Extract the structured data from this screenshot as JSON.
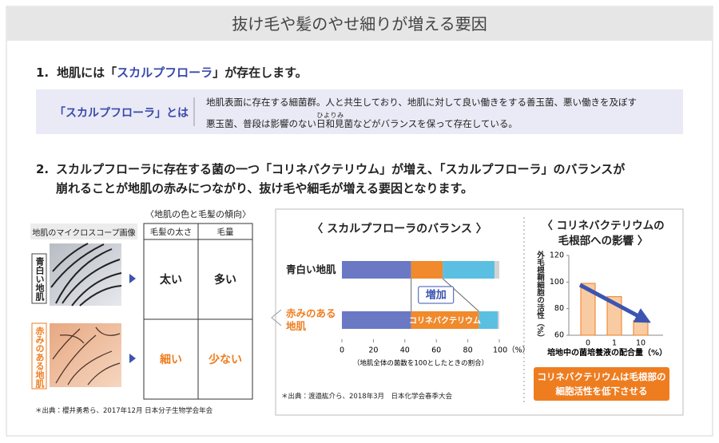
{
  "header": {
    "title": "抜け毛や髪のやせ細りが増える要因"
  },
  "section1": {
    "number": "1.",
    "heading": [
      "地肌には「",
      "スカルプフローラ",
      "」が存在します。"
    ],
    "definition": {
      "term": "「スカルプフローラ」とは",
      "line1": "地肌表面に存在する細菌群。人と共生しており、地肌に対して良い働きをする善玉菌、悪い働きを及ぼす",
      "line2_before": "悪玉菌、普段は影響のない",
      "ruby_base": "日和見",
      "ruby": "ひよりみ",
      "line2_after": "菌などがバランスを保って存在している。"
    }
  },
  "section2": {
    "number": "2.",
    "lines": [
      "スカルプフローラに存在する菌の一つ「コリネバクテリウム」が増え、「スカルプフローラ」のバランスが",
      "崩れることが地肌の赤みにつながり、抜け毛や細毛が増える要因となります。"
    ]
  },
  "skin_table": {
    "caption": "〈地肌の色と毛髪の傾向〉",
    "headers": [
      "地肌のマイクロスコープ画像",
      "毛髪の太さ",
      "毛量"
    ],
    "rows": [
      [
        "青白い地肌",
        "太い",
        "多い"
      ],
      [
        "赤みのある地肌",
        "細い",
        "少ない"
      ]
    ],
    "source": "＊出典：櫻井勇希ら、2017年12月 日本分子生物学会年会"
  },
  "chart_data": [
    {
      "type": "stacked-barh",
      "title": "〈 スカルプフローラのバランス 〉",
      "categories": [
        "青白い地肌",
        "赤みのある地肌"
      ],
      "series": [
        {
          "color": "#6b78c4",
          "values": [
            44,
            44
          ]
        },
        {
          "color": "#f08a2c",
          "values": [
            20,
            43
          ]
        },
        {
          "color": "#5bbfe2",
          "values": [
            33,
            12
          ]
        },
        {
          "color": "#d3d3d3",
          "values": [
            3,
            1
          ]
        }
      ],
      "xlim": [
        0,
        100
      ],
      "xticks": [
        0,
        20,
        40,
        60,
        80,
        {
          "value": 100,
          "label": "100（%）"
        }
      ],
      "xlabel": "（地肌全体の菌数を100としたときの割合）",
      "annotation_increase": "増加",
      "segment_label": "コリネバクテリウム",
      "source": "＊出典：渡邉紘介ら、2018年3月　日本化学会春季大会"
    },
    {
      "type": "bar",
      "title": [
        "〈 コリネバクテリウムの",
        "毛根部への影響 〉"
      ],
      "categories": [
        "0",
        "1",
        "10"
      ],
      "values": [
        99,
        89,
        71
      ],
      "color": "#f9cba2",
      "edge_color": "#ee7d20",
      "ylim": [
        60,
        120
      ],
      "yticks": [
        60,
        80,
        100,
        120
      ],
      "ylabel": "外毛根鞘細胞の活性（%）",
      "xlabel": "培地中の菌培養液の配合量（%）",
      "note": [
        "コリネバクテリウムは毛根部の",
        "細胞活性を低下させる"
      ]
    }
  ]
}
